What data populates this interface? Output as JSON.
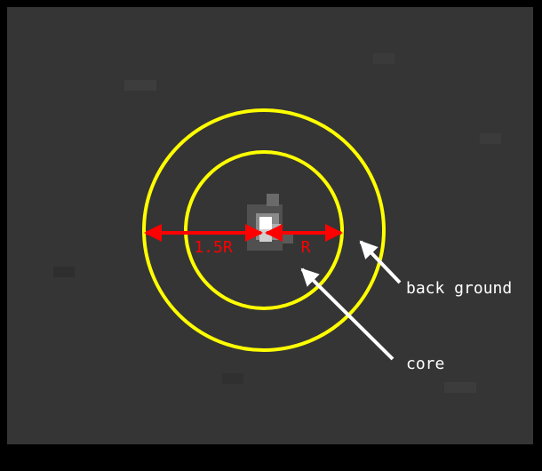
{
  "labels": {
    "outer_radius": "1.5R",
    "inner_radius": "R",
    "background": "back ground",
    "core": "core"
  }
}
